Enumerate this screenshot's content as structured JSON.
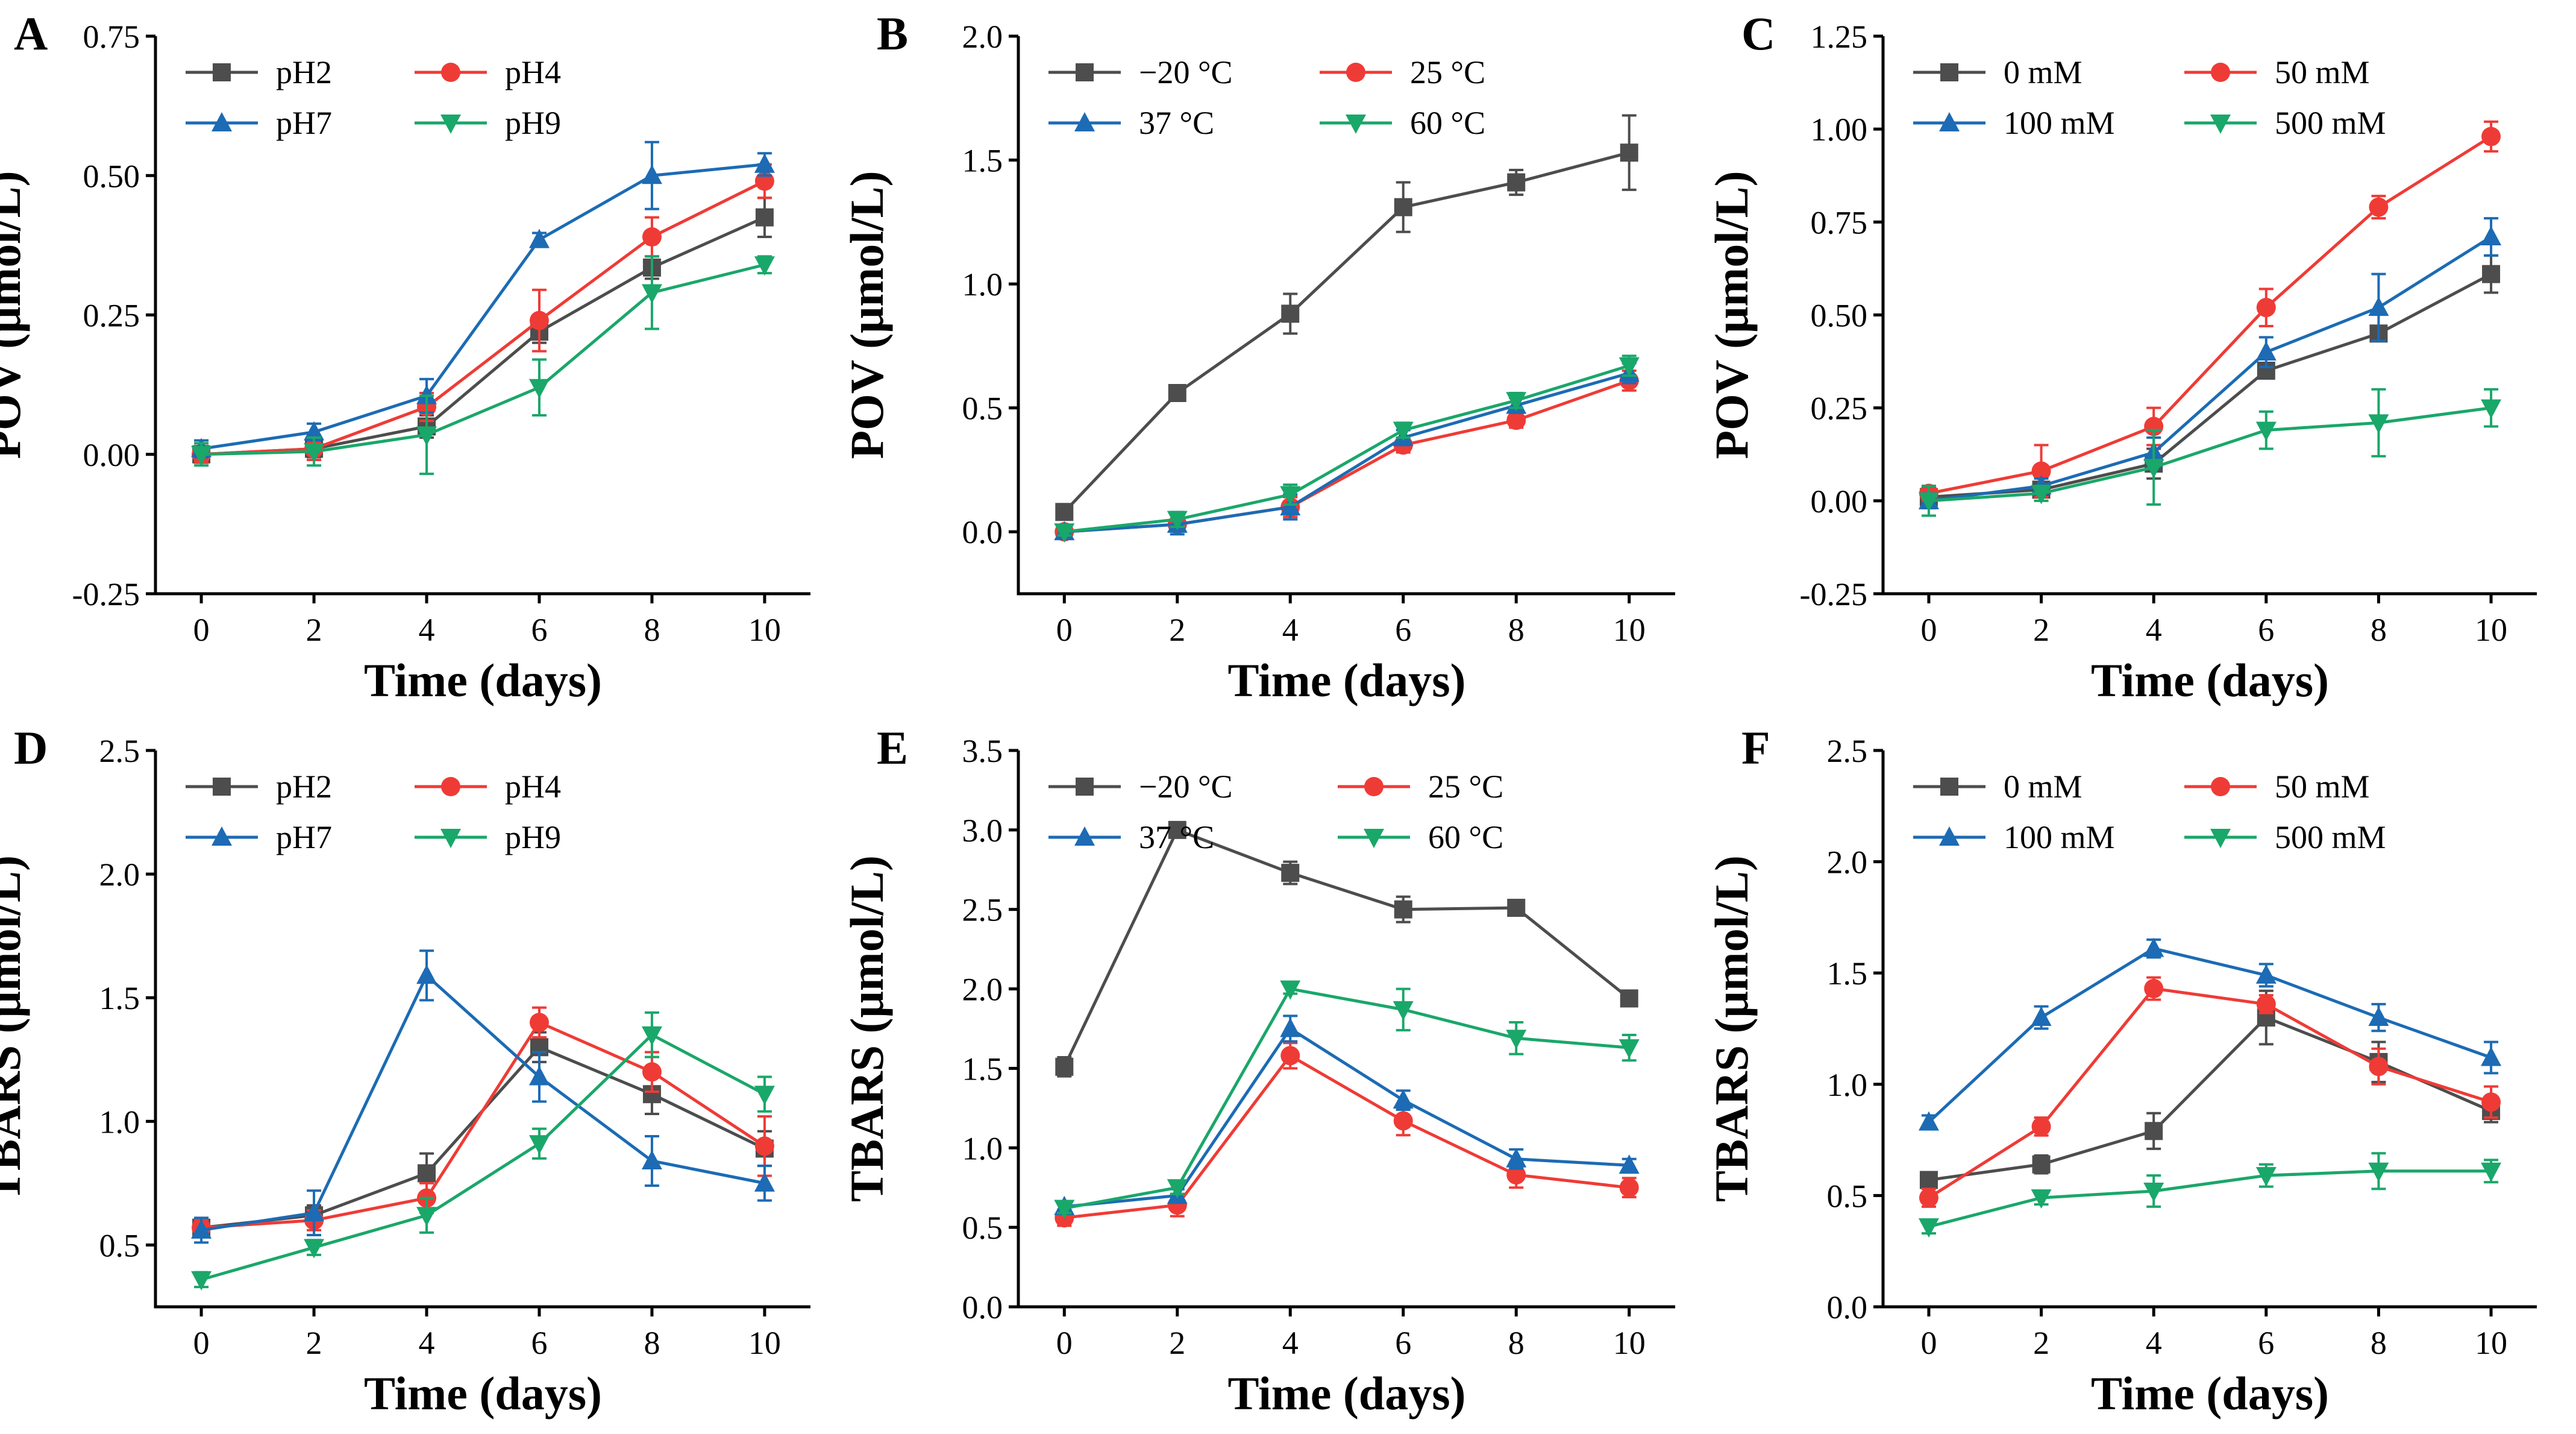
{
  "colors": {
    "dark": "#4d4d4d",
    "red": "#ef3b36",
    "blue": "#1c6bb4",
    "green": "#1aa76a"
  },
  "chart_data": [
    {
      "type": "line",
      "letter": "A",
      "xlabel": "Time (days)",
      "ylabel": "POV (μmol/L)",
      "x": [
        0,
        2,
        4,
        6,
        8,
        10
      ],
      "xticks": [
        "0",
        "2",
        "4",
        "6",
        "8",
        "10"
      ],
      "ylim": [
        -0.25,
        0.75
      ],
      "yticks": [
        "-0.25",
        "0.00",
        "0.25",
        "0.50",
        "0.75"
      ],
      "legend_cols": [
        0,
        380
      ],
      "series": [
        {
          "name": "pH2",
          "color": "dark",
          "marker": "square",
          "values": [
            0.0,
            0.01,
            0.05,
            0.22,
            0.335,
            0.425
          ],
          "errors": [
            0.015,
            0.015,
            0.02,
            0.02,
            0.02,
            0.035
          ]
        },
        {
          "name": "pH4",
          "color": "red",
          "marker": "circle",
          "values": [
            0.0,
            0.01,
            0.085,
            0.24,
            0.39,
            0.49
          ],
          "errors": [
            0.015,
            0.02,
            0.025,
            0.055,
            0.035,
            0.03
          ]
        },
        {
          "name": "pH7",
          "color": "blue",
          "marker": "triangle-up",
          "values": [
            0.01,
            0.04,
            0.105,
            0.385,
            0.5,
            0.52
          ],
          "errors": [
            0.015,
            0.015,
            0.03,
            0.012,
            0.06,
            0.02
          ]
        },
        {
          "name": "pH9",
          "color": "green",
          "marker": "triangle-down",
          "values": [
            0.0,
            0.005,
            0.035,
            0.12,
            0.29,
            0.34
          ],
          "errors": [
            0.02,
            0.025,
            0.07,
            0.05,
            0.065,
            0.015
          ]
        }
      ]
    },
    {
      "type": "line",
      "letter": "B",
      "xlabel": "Time (days)",
      "ylabel": "POV (μmol/L)",
      "x": [
        0,
        2,
        4,
        6,
        8,
        10
      ],
      "xticks": [
        "0",
        "2",
        "4",
        "6",
        "8",
        "10"
      ],
      "ylim": [
        -0.25,
        2.0
      ],
      "yticks": [
        "0.0",
        "0.5",
        "1.0",
        "1.5",
        "2.0"
      ],
      "legend_cols": [
        0,
        450
      ],
      "series": [
        {
          "name": "−20 °C",
          "color": "dark",
          "marker": "square",
          "values": [
            0.08,
            0.56,
            0.88,
            1.31,
            1.41,
            1.53
          ],
          "errors": [
            0.02,
            0.03,
            0.08,
            0.1,
            0.05,
            0.15
          ]
        },
        {
          "name": "25 °C",
          "color": "red",
          "marker": "circle",
          "values": [
            0.0,
            0.03,
            0.1,
            0.35,
            0.45,
            0.61
          ],
          "errors": [
            0.015,
            0.02,
            0.04,
            0.03,
            0.03,
            0.04
          ]
        },
        {
          "name": "37 °C",
          "color": "blue",
          "marker": "triangle-up",
          "values": [
            0.0,
            0.03,
            0.1,
            0.38,
            0.51,
            0.64
          ],
          "errors": [
            0.015,
            0.04,
            0.05,
            0.03,
            0.03,
            0.04
          ]
        },
        {
          "name": "60 °C",
          "color": "green",
          "marker": "triangle-down",
          "values": [
            0.0,
            0.05,
            0.15,
            0.41,
            0.53,
            0.67
          ],
          "errors": [
            0.015,
            0.03,
            0.04,
            0.03,
            0.03,
            0.04
          ]
        }
      ]
    },
    {
      "type": "line",
      "letter": "C",
      "xlabel": "Time (days)",
      "ylabel": "POV (μmol/L)",
      "x": [
        0,
        2,
        4,
        6,
        8,
        10
      ],
      "xticks": [
        "0",
        "2",
        "4",
        "6",
        "8",
        "10"
      ],
      "ylim": [
        -0.25,
        1.25
      ],
      "yticks": [
        "-0.25",
        "0.00",
        "0.25",
        "0.50",
        "0.75",
        "1.00",
        "1.25"
      ],
      "legend_cols": [
        0,
        450
      ],
      "series": [
        {
          "name": "0 mM",
          "color": "dark",
          "marker": "square",
          "values": [
            0.01,
            0.03,
            0.1,
            0.35,
            0.45,
            0.61
          ],
          "errors": [
            0.02,
            0.02,
            0.04,
            0.02,
            0.02,
            0.05
          ]
        },
        {
          "name": "50 mM",
          "color": "red",
          "marker": "circle",
          "values": [
            0.02,
            0.08,
            0.2,
            0.52,
            0.79,
            0.98
          ],
          "errors": [
            0.02,
            0.07,
            0.05,
            0.05,
            0.03,
            0.04
          ]
        },
        {
          "name": "100 mM",
          "color": "blue",
          "marker": "triangle-up",
          "values": [
            0.0,
            0.04,
            0.13,
            0.4,
            0.52,
            0.71
          ],
          "errors": [
            0.02,
            0.02,
            0.04,
            0.04,
            0.09,
            0.05
          ]
        },
        {
          "name": "500 mM",
          "color": "green",
          "marker": "triangle-down",
          "values": [
            0.0,
            0.02,
            0.09,
            0.19,
            0.21,
            0.25
          ],
          "errors": [
            0.04,
            0.02,
            0.1,
            0.05,
            0.09,
            0.05
          ]
        }
      ]
    },
    {
      "type": "line",
      "letter": "D",
      "xlabel": "Time (days)",
      "ylabel": "TBARS (μmol/L)",
      "x": [
        0,
        2,
        4,
        6,
        8,
        10
      ],
      "xticks": [
        "0",
        "2",
        "4",
        "6",
        "8",
        "10"
      ],
      "ylim": [
        0.25,
        2.5
      ],
      "yticks": [
        "0.5",
        "1.0",
        "1.5",
        "2.0",
        "2.5"
      ],
      "legend_cols": [
        0,
        380
      ],
      "series": [
        {
          "name": "pH2",
          "color": "dark",
          "marker": "square",
          "values": [
            0.57,
            0.62,
            0.79,
            1.3,
            1.11,
            0.89
          ],
          "errors": [
            0.03,
            0.04,
            0.08,
            0.06,
            0.08,
            0.07
          ]
        },
        {
          "name": "pH4",
          "color": "red",
          "marker": "circle",
          "values": [
            0.57,
            0.6,
            0.69,
            1.4,
            1.2,
            0.9
          ],
          "errors": [
            0.03,
            0.04,
            0.06,
            0.06,
            0.08,
            0.12
          ]
        },
        {
          "name": "pH7",
          "color": "blue",
          "marker": "triangle-up",
          "values": [
            0.56,
            0.63,
            1.59,
            1.18,
            0.84,
            0.75
          ],
          "errors": [
            0.05,
            0.09,
            0.1,
            0.1,
            0.1,
            0.07
          ]
        },
        {
          "name": "pH9",
          "color": "green",
          "marker": "triangle-down",
          "values": [
            0.36,
            0.49,
            0.62,
            0.91,
            1.35,
            1.11
          ],
          "errors": [
            0.03,
            0.03,
            0.07,
            0.06,
            0.09,
            0.07
          ]
        }
      ]
    },
    {
      "type": "line",
      "letter": "E",
      "xlabel": "Time (days)",
      "ylabel": "TBARS (μmol/L)",
      "x": [
        0,
        2,
        4,
        6,
        8,
        10
      ],
      "xticks": [
        "0",
        "2",
        "4",
        "6",
        "8",
        "10"
      ],
      "ylim": [
        0.0,
        3.5
      ],
      "yticks": [
        "0.0",
        "0.5",
        "1.0",
        "1.5",
        "2.0",
        "2.5",
        "3.0",
        "3.5"
      ],
      "legend_cols": [
        0,
        480
      ],
      "series": [
        {
          "name": "−20 °C",
          "color": "dark",
          "marker": "square",
          "values": [
            1.51,
            3.0,
            2.73,
            2.5,
            2.51,
            1.94
          ],
          "errors": [
            0.06,
            0.02,
            0.07,
            0.08,
            0.02,
            0.03
          ]
        },
        {
          "name": "25 °C",
          "color": "red",
          "marker": "circle",
          "values": [
            0.56,
            0.64,
            1.58,
            1.17,
            0.83,
            0.75
          ],
          "errors": [
            0.05,
            0.07,
            0.08,
            0.09,
            0.08,
            0.06
          ]
        },
        {
          "name": "37 °C",
          "color": "blue",
          "marker": "triangle-up",
          "values": [
            0.63,
            0.7,
            1.75,
            1.3,
            0.93,
            0.89
          ],
          "errors": [
            0.03,
            0.04,
            0.08,
            0.06,
            0.06,
            0.04
          ]
        },
        {
          "name": "60 °C",
          "color": "green",
          "marker": "triangle-down",
          "values": [
            0.62,
            0.75,
            2.0,
            1.87,
            1.69,
            1.63
          ],
          "errors": [
            0.03,
            0.04,
            0.03,
            0.13,
            0.1,
            0.08
          ]
        }
      ]
    },
    {
      "type": "line",
      "letter": "F",
      "xlabel": "Time (days)",
      "ylabel": "TBARS (μmol/L)",
      "x": [
        0,
        2,
        4,
        6,
        8,
        10
      ],
      "xticks": [
        "0",
        "2",
        "4",
        "6",
        "8",
        "10"
      ],
      "ylim": [
        0.0,
        2.5
      ],
      "yticks": [
        "0.0",
        "0.5",
        "1.0",
        "1.5",
        "2.0",
        "2.5"
      ],
      "legend_cols": [
        0,
        450
      ],
      "series": [
        {
          "name": "0 mM",
          "color": "dark",
          "marker": "square",
          "values": [
            0.57,
            0.64,
            0.79,
            1.3,
            1.1,
            0.88
          ],
          "errors": [
            0.03,
            0.04,
            0.08,
            0.12,
            0.09,
            0.05
          ]
        },
        {
          "name": "50 mM",
          "color": "red",
          "marker": "circle",
          "values": [
            0.49,
            0.81,
            1.43,
            1.36,
            1.08,
            0.92
          ],
          "errors": [
            0.04,
            0.04,
            0.05,
            0.04,
            0.08,
            0.07
          ]
        },
        {
          "name": "100 mM",
          "color": "blue",
          "marker": "triangle-up",
          "values": [
            0.83,
            1.3,
            1.61,
            1.49,
            1.3,
            1.12
          ],
          "errors": [
            0.03,
            0.05,
            0.04,
            0.05,
            0.06,
            0.07
          ]
        },
        {
          "name": "500 mM",
          "color": "green",
          "marker": "triangle-down",
          "values": [
            0.36,
            0.49,
            0.52,
            0.59,
            0.61,
            0.61
          ],
          "errors": [
            0.03,
            0.03,
            0.07,
            0.05,
            0.08,
            0.05
          ]
        }
      ]
    }
  ]
}
